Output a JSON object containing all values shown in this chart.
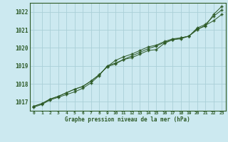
{
  "x": [
    0,
    1,
    2,
    3,
    4,
    5,
    6,
    7,
    8,
    9,
    10,
    11,
    12,
    13,
    14,
    15,
    16,
    17,
    18,
    19,
    20,
    21,
    22,
    23
  ],
  "line1": [
    1016.7,
    1016.85,
    1017.1,
    1017.25,
    1017.4,
    1017.55,
    1017.75,
    1018.05,
    1018.45,
    1019.0,
    1019.15,
    1019.35,
    1019.45,
    1019.65,
    1019.85,
    1019.9,
    1020.25,
    1020.45,
    1020.5,
    1020.65,
    1021.05,
    1021.2,
    1021.85,
    1022.3
  ],
  "line2": [
    1016.75,
    1016.9,
    1017.15,
    1017.3,
    1017.5,
    1017.7,
    1017.85,
    1018.15,
    1018.5,
    1018.95,
    1019.1,
    1019.35,
    1019.55,
    1019.75,
    1019.95,
    1020.1,
    1020.3,
    1020.45,
    1020.55,
    1020.65,
    1021.1,
    1021.3,
    1021.75,
    1022.1
  ],
  "line3": [
    1016.75,
    1016.9,
    1017.15,
    1017.3,
    1017.5,
    1017.7,
    1017.85,
    1018.15,
    1018.5,
    1018.95,
    1019.3,
    1019.5,
    1019.65,
    1019.85,
    1020.05,
    1020.15,
    1020.35,
    1020.5,
    1020.55,
    1020.65,
    1021.0,
    1021.25,
    1021.5,
    1021.85
  ],
  "line_color": "#2d5a27",
  "bg_color": "#cce9f0",
  "grid_color": "#aacfd8",
  "xlabel_text": "Graphe pression niveau de la mer (hPa)",
  "ylim": [
    1016.5,
    1022.5
  ],
  "yticks": [
    1017,
    1018,
    1019,
    1020,
    1021,
    1022
  ],
  "xticks": [
    0,
    1,
    2,
    3,
    4,
    5,
    6,
    7,
    8,
    9,
    10,
    11,
    12,
    13,
    14,
    15,
    16,
    17,
    18,
    19,
    20,
    21,
    22,
    23
  ],
  "figsize": [
    3.2,
    2.0
  ],
  "dpi": 100
}
